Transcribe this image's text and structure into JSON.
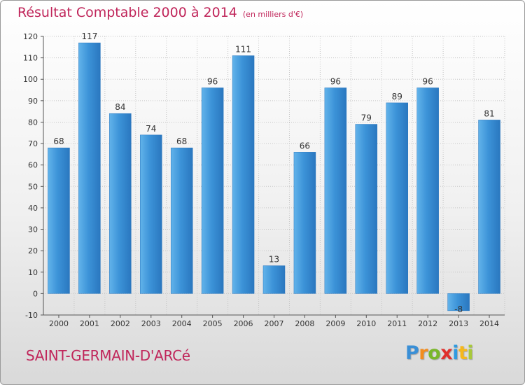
{
  "title": "Résultat Comptable 2000 à 2014",
  "unit": "(en milliers d'€)",
  "commune": "SAINT-GERMAIN-D'ARCé",
  "brand": {
    "letters": [
      "P",
      "r",
      "o",
      "x",
      "i",
      "t",
      "i"
    ],
    "colors": [
      "#3a8fd6",
      "#f28c1e",
      "#7ab72b",
      "#e0302c",
      "#2f9be0",
      "#f6b81b",
      "#a8c93a"
    ]
  },
  "colors": {
    "bar": "#3c93d8",
    "bar_light": "#62b3ea",
    "bar_dark": "#2a77bf",
    "text": "#c0255a"
  },
  "chart_data": {
    "type": "bar",
    "categories": [
      "2000",
      "2001",
      "2002",
      "2003",
      "2004",
      "2005",
      "2006",
      "2007",
      "2008",
      "2009",
      "2010",
      "2011",
      "2012",
      "2013",
      "2014"
    ],
    "values": [
      68,
      117,
      84,
      74,
      68,
      96,
      111,
      13,
      66,
      96,
      79,
      89,
      96,
      -8,
      81
    ],
    "ylim": [
      -10,
      120
    ],
    "yticks": [
      -10,
      0,
      10,
      20,
      30,
      40,
      50,
      60,
      70,
      80,
      90,
      100,
      110,
      120
    ],
    "grid": true
  }
}
